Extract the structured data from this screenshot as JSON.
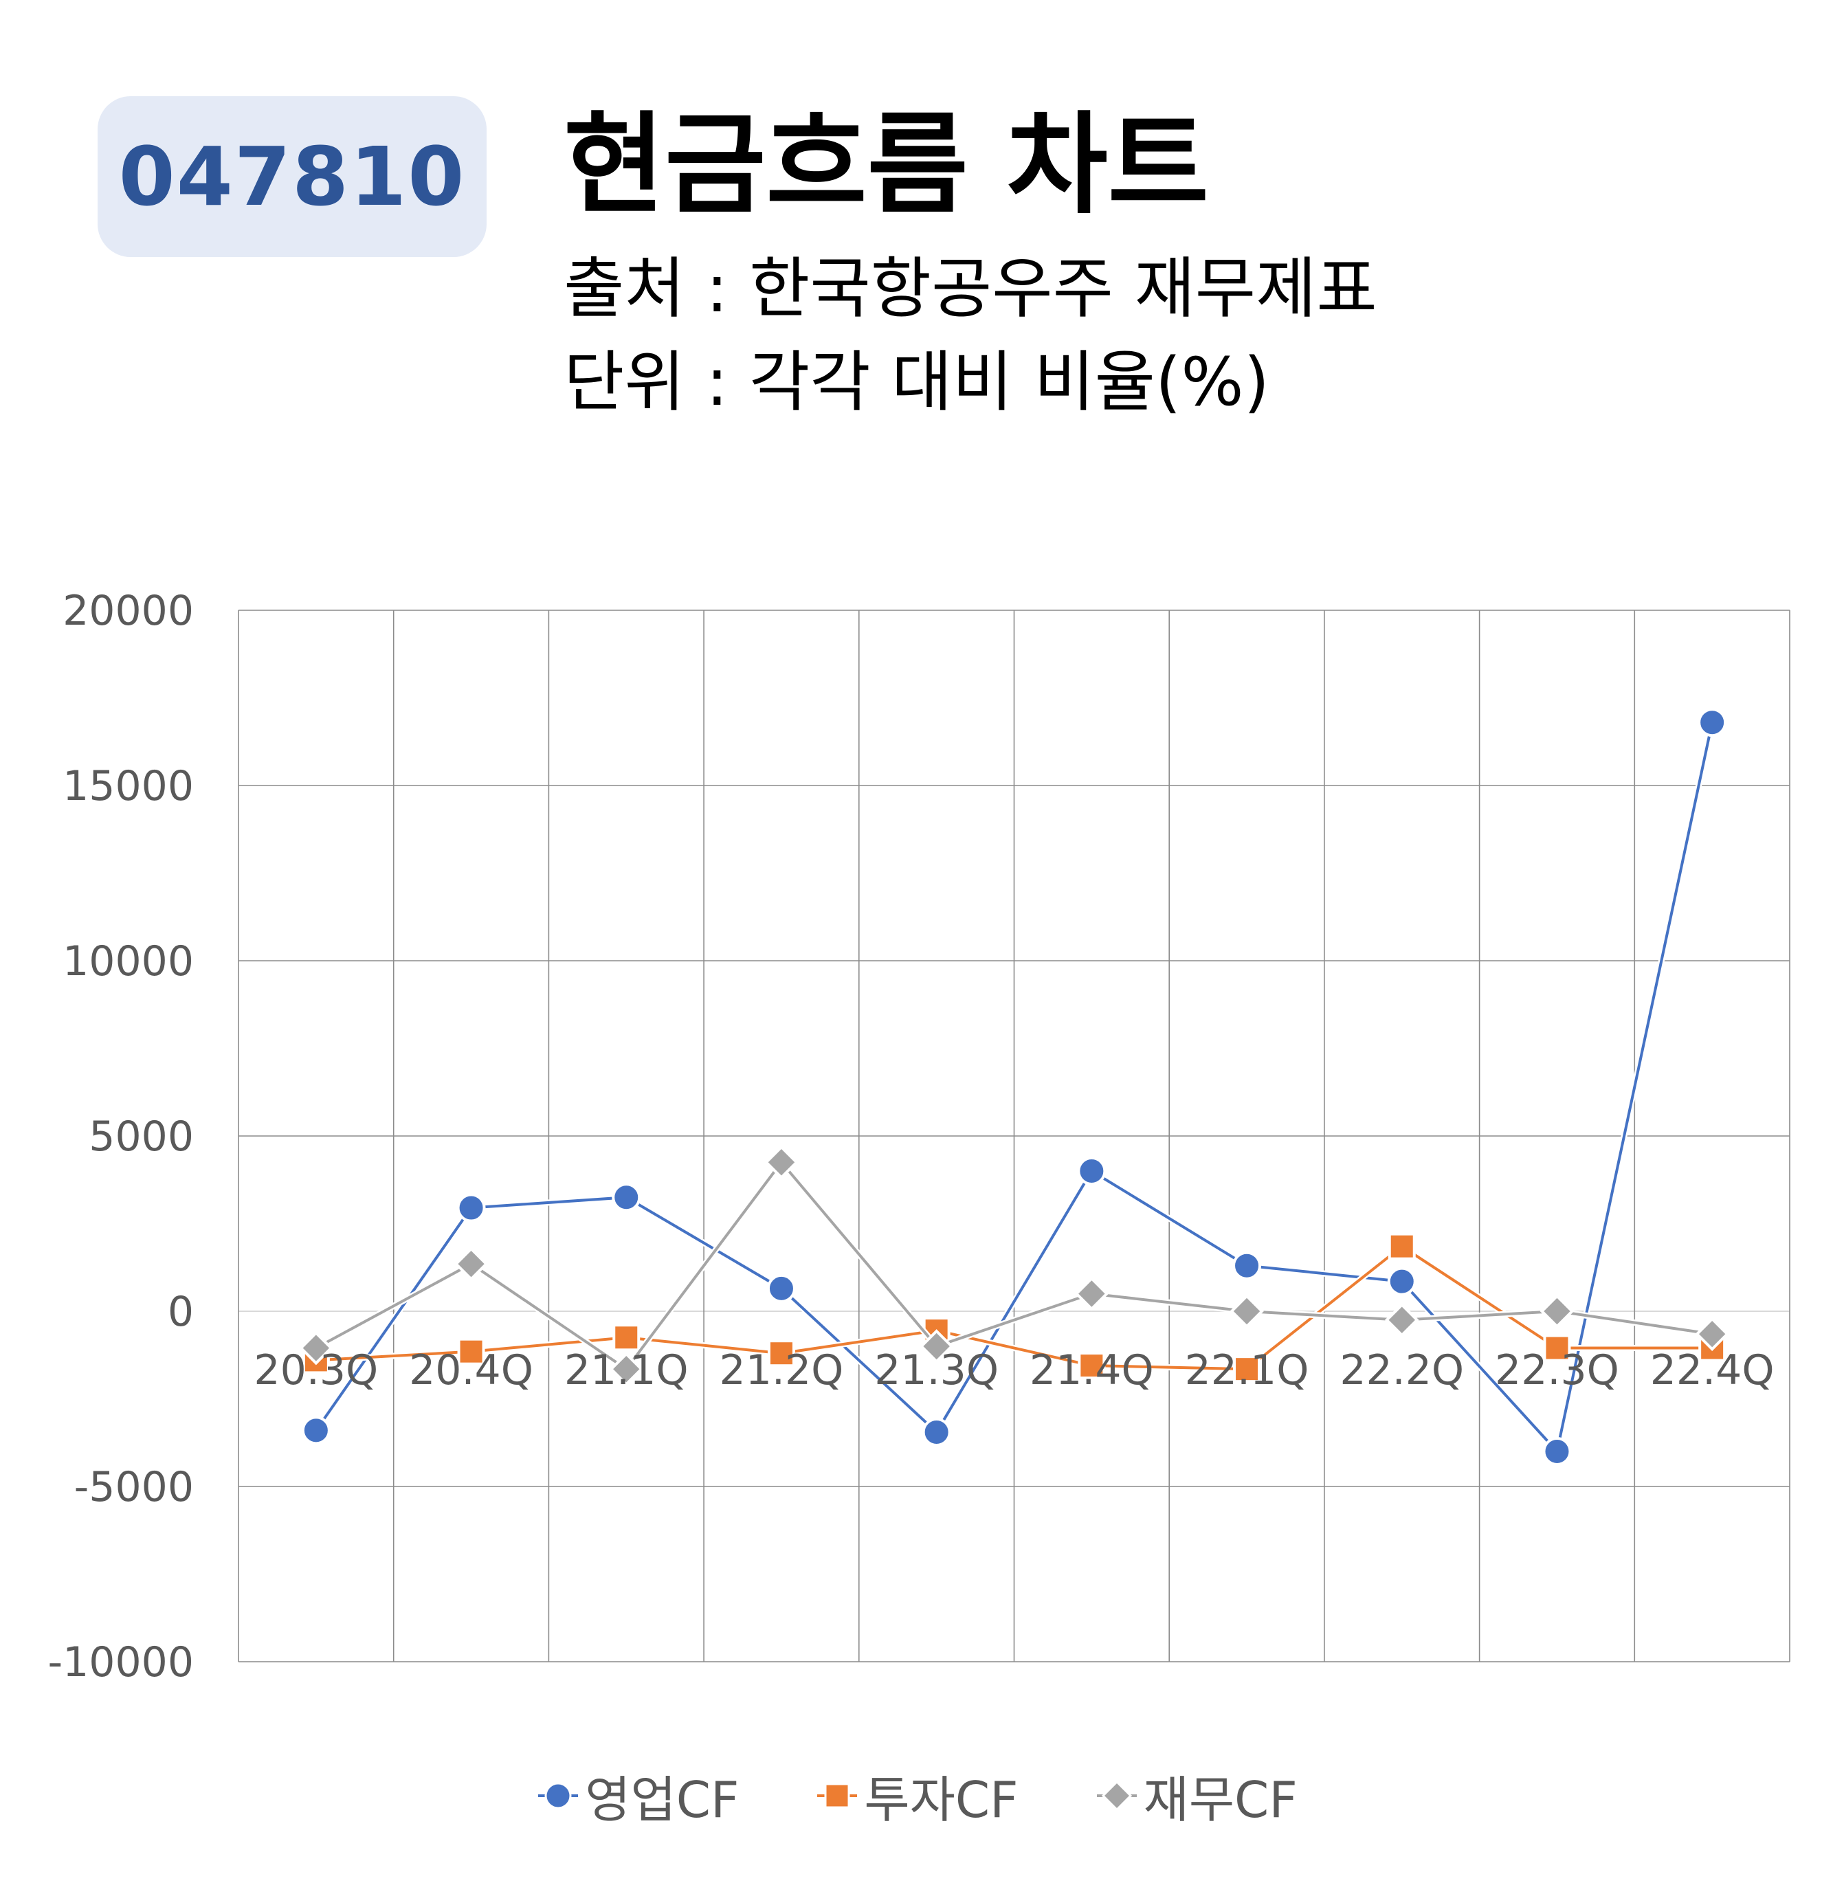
{
  "header": {
    "badge": "047810",
    "title": "현금흐름 차트",
    "source": "출처 : 한국항공우주 재무제표",
    "unit": "단위 : 각각 대비 비율(%)"
  },
  "colors": {
    "badge_bg": "#e4eaf6",
    "badge_text": "#2e5597",
    "operating": "#4472c4",
    "investing": "#ed7d31",
    "financing": "#a5a5a5",
    "grid": "#8c8c8c"
  },
  "chart_data": {
    "type": "line",
    "categories": [
      "20.3Q",
      "20.4Q",
      "21.1Q",
      "21.2Q",
      "21.3Q",
      "21.4Q",
      "22.1Q",
      "22.2Q",
      "22.3Q",
      "22.4Q"
    ],
    "series": [
      {
        "name": "영업CF",
        "marker": "circle",
        "values": [
          -3400,
          2950,
          3250,
          650,
          -3450,
          4000,
          1300,
          850,
          -4000,
          16800
        ]
      },
      {
        "name": "투자CF",
        "marker": "square",
        "values": [
          -1400,
          -1150,
          -750,
          -1200,
          -550,
          -1550,
          -1650,
          1850,
          -1050,
          -1050
        ]
      },
      {
        "name": "재무CF",
        "marker": "diamond",
        "values": [
          -1050,
          1350,
          -1650,
          4250,
          -1000,
          500,
          0,
          -250,
          0,
          -650
        ]
      }
    ],
    "ylim": [
      -10000,
      20000
    ],
    "yticks": [
      "20000",
      "15000",
      "10000",
      "5000",
      "0",
      "-5000",
      "-10000"
    ],
    "grid": true,
    "legend": "bottom"
  }
}
